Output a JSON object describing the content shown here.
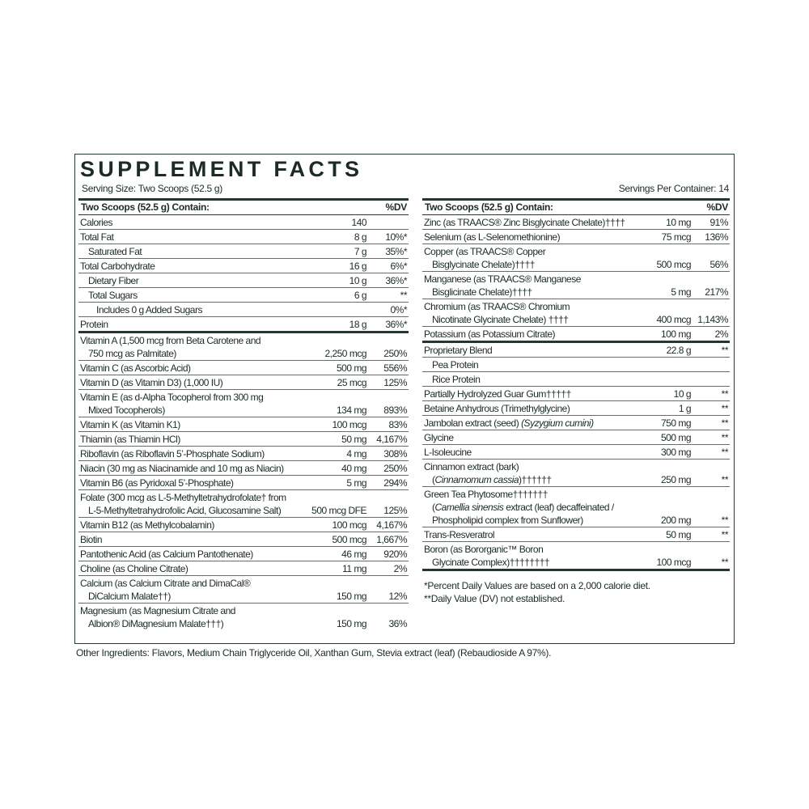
{
  "title": "SUPPLEMENT FACTS",
  "serving_size": "Serving Size: Two Scoops (52.5 g)",
  "servings_per_container": "Servings Per Container: 14",
  "colors": {
    "text": "#1c2b24",
    "rule": "#1f3a2e"
  },
  "left": {
    "header": {
      "label": "Two Scoops (52.5 g) Contain:",
      "dv": "%DV"
    },
    "rows": [
      {
        "lines": [
          "Calories"
        ],
        "amount": "140",
        "dv": ""
      },
      {
        "lines": [
          "Total Fat"
        ],
        "amount": "8 g",
        "dv": "10%*"
      },
      {
        "lines": [
          "Saturated Fat"
        ],
        "amount": "7 g",
        "dv": "35%*",
        "indent": 1
      },
      {
        "lines": [
          "Total Carbohydrate"
        ],
        "amount": "16 g",
        "dv": "6%*"
      },
      {
        "lines": [
          "Dietary Fiber"
        ],
        "amount": "10 g",
        "dv": "36%*",
        "indent": 1
      },
      {
        "lines": [
          "Total Sugars"
        ],
        "amount": "6 g",
        "dv": "**",
        "indent": 1
      },
      {
        "lines": [
          "Includes 0 g Added Sugars"
        ],
        "amount": "",
        "dv": "0%*",
        "indent": 2
      },
      {
        "lines": [
          "Protein"
        ],
        "amount": "18 g",
        "dv": "36%*",
        "thick": true
      },
      {
        "lines": [
          "Vitamin A (1,500 mcg from Beta Carotene and",
          "750 mcg as Palmitate)"
        ],
        "amount": "2,250 mcg",
        "dv": "250%"
      },
      {
        "lines": [
          "Vitamin C (as Ascorbic Acid)"
        ],
        "amount": "500 mg",
        "dv": "556%"
      },
      {
        "lines": [
          "Vitamin D (as Vitamin D3) (1,000 IU)"
        ],
        "amount": "25 mcg",
        "dv": "125%"
      },
      {
        "lines": [
          "Vitamin E (as d-Alpha Tocopherol from 300 mg",
          "Mixed Tocopherols)"
        ],
        "amount": "134 mg",
        "dv": "893%"
      },
      {
        "lines": [
          "Vitamin K (as Vitamin K1)"
        ],
        "amount": "100 mcg",
        "dv": "83%"
      },
      {
        "lines": [
          "Thiamin (as Thiamin HCl)"
        ],
        "amount": "50 mg",
        "dv": "4,167%"
      },
      {
        "lines": [
          "Riboflavin (as Riboflavin 5’-Phosphate Sodium)"
        ],
        "amount": "4 mg",
        "dv": "308%"
      },
      {
        "lines": [
          "Niacin (30 mg as Niacinamide and 10 mg as Niacin)"
        ],
        "amount": "40 mg",
        "dv": "250%"
      },
      {
        "lines": [
          "Vitamin B6 (as Pyridoxal 5’-Phosphate)"
        ],
        "amount": "5 mg",
        "dv": "294%"
      },
      {
        "lines": [
          "Folate (300 mcg as L-5-Methyltetrahydrofolate† from",
          "L-5-Methyltetrahydrofolic Acid, Glucosamine Salt)"
        ],
        "amount": "500 mcg DFE",
        "dv": "125%"
      },
      {
        "lines": [
          "Vitamin B12 (as Methylcobalamin)"
        ],
        "amount": "100 mcg",
        "dv": "4,167%"
      },
      {
        "lines": [
          "Biotin"
        ],
        "amount": "500 mcg",
        "dv": "1,667%"
      },
      {
        "lines": [
          "Pantothenic Acid (as Calcium Pantothenate)"
        ],
        "amount": "46 mg",
        "dv": "920%"
      },
      {
        "lines": [
          "Choline (as Choline Citrate)"
        ],
        "amount": "11 mg",
        "dv": "2%"
      },
      {
        "lines": [
          "Calcium (as Calcium Citrate and DimaCal®",
          "DiCalcium Malate††)"
        ],
        "amount": "150 mg",
        "dv": "12%"
      },
      {
        "lines": [
          "Magnesium (as Magnesium Citrate and",
          "Albion® DiMagnesium Malate†††)"
        ],
        "amount": "150 mg",
        "dv": "36%",
        "last": true
      }
    ]
  },
  "right": {
    "header": {
      "label": "Two Scoops (52.5 g) Contain:",
      "dv": "%DV"
    },
    "rows": [
      {
        "lines": [
          "Zinc (as TRAACS® Zinc Bisglycinate Chelate)††††"
        ],
        "amount": "10 mg",
        "dv": "91%"
      },
      {
        "lines": [
          "Selenium (as L-Selenomethionine)"
        ],
        "amount": "75 mcg",
        "dv": "136%"
      },
      {
        "lines": [
          "Copper (as TRAACS® Copper",
          "Bisglycinate Chelate)††††"
        ],
        "amount": "500 mcg",
        "dv": "56%"
      },
      {
        "lines": [
          "Manganese (as TRAACS® Manganese",
          "Bisglicinate Chelate)††††"
        ],
        "amount": "5 mg",
        "dv": "217%"
      },
      {
        "lines": [
          "Chromium (as TRAACS® Chromium",
          "Nicotinate Glycinate Chelate) ††††"
        ],
        "amount": "400 mcg",
        "dv": "1,143%"
      },
      {
        "lines": [
          "Potassium (as Potassium Citrate)"
        ],
        "amount": "100 mg",
        "dv": "2%",
        "thick": true
      },
      {
        "lines": [
          "Proprietary Blend"
        ],
        "amount": "22.8 g",
        "dv": "**"
      },
      {
        "lines": [
          "Pea Protein"
        ],
        "amount": "",
        "dv": "",
        "indent": 1
      },
      {
        "lines": [
          "Rice Protein"
        ],
        "amount": "",
        "dv": "",
        "indent": 1
      },
      {
        "lines": [
          "Partially Hydrolyzed Guar Gum†††††"
        ],
        "amount": "10 g",
        "dv": "**"
      },
      {
        "lines": [
          "Betaine Anhydrous (Trimethylglycine)"
        ],
        "amount": "1 g",
        "dv": "**"
      },
      {
        "lines": [
          [
            {
              "text": "Jambolan extract (seed) "
            },
            {
              "text": "(Syzygium cumini)",
              "italic": true
            }
          ]
        ],
        "amount": "750 mg",
        "dv": "**"
      },
      {
        "lines": [
          "Glycine"
        ],
        "amount": "500 mg",
        "dv": "**"
      },
      {
        "lines": [
          "L-Isoleucine"
        ],
        "amount": "300 mg",
        "dv": "**"
      },
      {
        "lines": [
          "Cinnamon extract (bark)",
          [
            {
              "text": "("
            },
            {
              "text": "Cinnamomum cassia",
              "italic": true
            },
            {
              "text": ")††††††"
            }
          ]
        ],
        "amount": "250 mg",
        "dv": "**"
      },
      {
        "lines": [
          "Green Tea Phytosome†††††††",
          [
            {
              "text": "("
            },
            {
              "text": "Camellia sinensis",
              "italic": true
            },
            {
              "text": " extract (leaf) decaffeinated /"
            }
          ],
          "Phospholipid complex from Sunflower)"
        ],
        "amount": "200 mg",
        "dv": "**"
      },
      {
        "lines": [
          "Trans-Resveratrol"
        ],
        "amount": "50 mg",
        "dv": "**"
      },
      {
        "lines": [
          "Boron (as Bororganic™ Boron",
          "Glycinate Complex)††††††††"
        ],
        "amount": "100 mcg",
        "dv": "**",
        "thick": true
      }
    ],
    "footnotes": [
      "*Percent Daily Values are based on a 2,000 calorie diet.",
      "**Daily Value (DV) not established."
    ]
  },
  "other_ingredients": "Other Ingredients: Flavors, Medium Chain Triglyceride Oil, Xanthan Gum, Stevia extract (leaf) (Rebaudioside A 97%)."
}
